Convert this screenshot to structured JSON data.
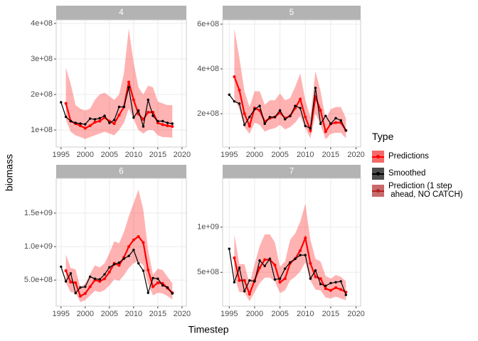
{
  "chart_data": [
    {
      "type": "line",
      "title": "4",
      "x": [
        1995,
        1996,
        1997,
        1998,
        1999,
        2000,
        2001,
        2002,
        2003,
        2004,
        2005,
        2006,
        2007,
        2008,
        2009,
        2010,
        2011,
        2012,
        2013,
        2014,
        2015,
        2016,
        2017,
        2018
      ],
      "smoothed": [
        178000000.0,
        137000000.0,
        125000000.0,
        120000000.0,
        118000000.0,
        116000000.0,
        132000000.0,
        130000000.0,
        133000000.0,
        140000000.0,
        120000000.0,
        128000000.0,
        165000000.0,
        165000000.0,
        220000000.0,
        135000000.0,
        155000000.0,
        110000000.0,
        185000000.0,
        140000000.0,
        125000000.0,
        125000000.0,
        120000000.0,
        118000000.0
      ],
      "predictions": [
        null,
        175000000.0,
        125000000.0,
        118000000.0,
        112000000.0,
        105000000.0,
        112000000.0,
        122000000.0,
        125000000.0,
        135000000.0,
        125000000.0,
        118000000.0,
        142000000.0,
        165000000.0,
        235000000.0,
        185000000.0,
        145000000.0,
        130000000.0,
        150000000.0,
        150000000.0,
        120000000.0,
        115000000.0,
        112000000.0,
        110000000.0
      ],
      "band": {
        "lower": [
          null,
          130000000.0,
          95000000.0,
          85000000.0,
          80000000.0,
          75000000.0,
          80000000.0,
          85000000.0,
          90000000.0,
          95000000.0,
          90000000.0,
          85000000.0,
          100000000.0,
          120000000.0,
          160000000.0,
          130000000.0,
          100000000.0,
          90000000.0,
          100000000.0,
          100000000.0,
          85000000.0,
          80000000.0,
          80000000.0,
          78000000.0
        ],
        "upper": [
          null,
          275000000.0,
          230000000.0,
          170000000.0,
          160000000.0,
          155000000.0,
          160000000.0,
          185000000.0,
          200000000.0,
          205000000.0,
          195000000.0,
          185000000.0,
          200000000.0,
          260000000.0,
          385000000.0,
          290000000.0,
          220000000.0,
          200000000.0,
          225000000.0,
          220000000.0,
          180000000.0,
          175000000.0,
          170000000.0,
          170000000.0
        ]
      },
      "xlim": [
        1994,
        2020.9
      ],
      "xticks": [
        1995,
        2000,
        2005,
        2010,
        2015,
        2020
      ],
      "ylim": [
        52000000.0,
        410000000.0
      ],
      "yticks": [
        {
          "value": 100000000.0,
          "label": "1e+08"
        },
        {
          "value": 200000000.0,
          "label": "2e+08"
        },
        {
          "value": 300000000.0,
          "label": "3e+08"
        },
        {
          "value": 400000000.0,
          "label": "4e+08"
        }
      ]
    },
    {
      "type": "line",
      "title": "5",
      "x": [
        1995,
        1996,
        1997,
        1998,
        1999,
        2000,
        2001,
        2002,
        2003,
        2004,
        2005,
        2006,
        2007,
        2008,
        2009,
        2010,
        2011,
        2012,
        2013,
        2014,
        2015,
        2016,
        2017,
        2018
      ],
      "smoothed": [
        285000000.0,
        255000000.0,
        245000000.0,
        150000000.0,
        185000000.0,
        220000000.0,
        235000000.0,
        155000000.0,
        185000000.0,
        185000000.0,
        215000000.0,
        175000000.0,
        190000000.0,
        235000000.0,
        225000000.0,
        145000000.0,
        135000000.0,
        315000000.0,
        155000000.0,
        190000000.0,
        155000000.0,
        180000000.0,
        170000000.0,
        125000000.0
      ],
      "predictions": [
        null,
        365000000.0,
        305000000.0,
        200000000.0,
        145000000.0,
        225000000.0,
        215000000.0,
        165000000.0,
        180000000.0,
        185000000.0,
        205000000.0,
        180000000.0,
        190000000.0,
        225000000.0,
        265000000.0,
        185000000.0,
        125000000.0,
        275000000.0,
        215000000.0,
        120000000.0,
        155000000.0,
        160000000.0,
        160000000.0,
        125000000.0
      ],
      "band": {
        "lower": [
          null,
          270000000.0,
          220000000.0,
          140000000.0,
          110000000.0,
          160000000.0,
          150000000.0,
          120000000.0,
          130000000.0,
          135000000.0,
          150000000.0,
          130000000.0,
          140000000.0,
          160000000.0,
          190000000.0,
          135000000.0,
          90000000.0,
          200000000.0,
          150000000.0,
          85000000.0,
          110000000.0,
          115000000.0,
          115000000.0,
          90000000.0
        ],
        "upper": [
          null,
          580000000.0,
          450000000.0,
          300000000.0,
          230000000.0,
          300000000.0,
          300000000.0,
          240000000.0,
          260000000.0,
          260000000.0,
          290000000.0,
          260000000.0,
          270000000.0,
          320000000.0,
          380000000.0,
          260000000.0,
          185000000.0,
          390000000.0,
          300000000.0,
          175000000.0,
          220000000.0,
          230000000.0,
          230000000.0,
          180000000.0
        ]
      },
      "xlim": [
        1993.7,
        2020.9
      ],
      "xticks": [
        1995,
        2000,
        2005,
        2010,
        2015,
        2020
      ],
      "ylim": [
        51000000.0,
        619000000.0
      ],
      "yticks": [
        {
          "value": 200000000.0,
          "label": "2e+08"
        },
        {
          "value": 400000000.0,
          "label": "4e+08"
        },
        {
          "value": 600000000.0,
          "label": "6e+08"
        }
      ]
    },
    {
      "type": "line",
      "title": "6",
      "x": [
        1995,
        1996,
        1997,
        1998,
        1999,
        2000,
        2001,
        2002,
        2003,
        2004,
        2005,
        2006,
        2007,
        2008,
        2009,
        2010,
        2011,
        2012,
        2013,
        2014,
        2015,
        2016,
        2017,
        2018
      ],
      "smoothed": [
        700000000.0,
        480000000.0,
        600000000.0,
        305000000.0,
        390000000.0,
        400000000.0,
        550000000.0,
        520000000.0,
        510000000.0,
        585000000.0,
        690000000.0,
        735000000.0,
        760000000.0,
        820000000.0,
        860000000.0,
        950000000.0,
        750000000.0,
        640000000.0,
        310000000.0,
        530000000.0,
        520000000.0,
        420000000.0,
        390000000.0,
        300000000.0
      ],
      "predictions": [
        null,
        640000000.0,
        470000000.0,
        460000000.0,
        260000000.0,
        300000000.0,
        400000000.0,
        500000000.0,
        480000000.0,
        520000000.0,
        620000000.0,
        750000000.0,
        720000000.0,
        840000000.0,
        1000000000.0,
        1100000000.0,
        1150000000.0,
        1060000000.0,
        650000000.0,
        400000000.0,
        460000000.0,
        450000000.0,
        380000000.0,
        310000000.0
      ],
      "band": {
        "lower": [
          null,
          460000000.0,
          320000000.0,
          310000000.0,
          170000000.0,
          200000000.0,
          270000000.0,
          340000000.0,
          320000000.0,
          350000000.0,
          420000000.0,
          510000000.0,
          490000000.0,
          570000000.0,
          680000000.0,
          750000000.0,
          780000000.0,
          720000000.0,
          440000000.0,
          270000000.0,
          310000000.0,
          300000000.0,
          260000000.0,
          210000000.0
        ],
        "upper": [
          null,
          880000000.0,
          680000000.0,
          660000000.0,
          390000000.0,
          450000000.0,
          590000000.0,
          720000000.0,
          690000000.0,
          750000000.0,
          900000000.0,
          1080000000.0,
          1050000000.0,
          1220000000.0,
          1450000000.0,
          1650000000.0,
          1850000000.0,
          1550000000.0,
          950000000.0,
          580000000.0,
          670000000.0,
          650000000.0,
          550000000.0,
          450000000.0
        ]
      },
      "xlim": [
        1994,
        2020.9
      ],
      "xticks": [
        1995,
        2000,
        2005,
        2010,
        2015,
        2020
      ],
      "ylim": [
        110000000.0,
        2020000000.0
      ],
      "yticks": [
        {
          "value": 500000000.0,
          "label": "5.0e+08"
        },
        {
          "value": 1000000000.0,
          "label": "1.0e+09"
        },
        {
          "value": 1500000000.0,
          "label": "1.5e+09"
        }
      ]
    },
    {
      "type": "line",
      "title": "7",
      "x": [
        1995,
        1996,
        1997,
        1998,
        1999,
        2000,
        2001,
        2002,
        2003,
        2004,
        2005,
        2006,
        2007,
        2008,
        2009,
        2010,
        2011,
        2012,
        2013,
        2014,
        2015,
        2016,
        2017,
        2018
      ],
      "smoothed": [
        760000000.0,
        390000000.0,
        550000000.0,
        290000000.0,
        410000000.0,
        400000000.0,
        630000000.0,
        570000000.0,
        650000000.0,
        420000000.0,
        430000000.0,
        540000000.0,
        610000000.0,
        650000000.0,
        690000000.0,
        690000000.0,
        430000000.0,
        520000000.0,
        370000000.0,
        350000000.0,
        380000000.0,
        390000000.0,
        400000000.0,
        250000000.0
      ],
      "predictions": [
        null,
        660000000.0,
        410000000.0,
        410000000.0,
        260000000.0,
        410000000.0,
        550000000.0,
        640000000.0,
        640000000.0,
        580000000.0,
        390000000.0,
        430000000.0,
        600000000.0,
        650000000.0,
        740000000.0,
        880000000.0,
        600000000.0,
        450000000.0,
        430000000.0,
        320000000.0,
        300000000.0,
        330000000.0,
        310000000.0,
        280000000.0
      ],
      "band": {
        "lower": [
          null,
          460000000.0,
          280000000.0,
          280000000.0,
          180000000.0,
          280000000.0,
          380000000.0,
          440000000.0,
          440000000.0,
          400000000.0,
          270000000.0,
          300000000.0,
          410000000.0,
          450000000.0,
          510000000.0,
          610000000.0,
          410000000.0,
          310000000.0,
          300000000.0,
          220000000.0,
          210000000.0,
          230000000.0,
          210000000.0,
          190000000.0
        ],
        "upper": [
          null,
          920000000.0,
          590000000.0,
          590000000.0,
          370000000.0,
          590000000.0,
          790000000.0,
          920000000.0,
          920000000.0,
          830000000.0,
          560000000.0,
          620000000.0,
          860000000.0,
          930000000.0,
          1060000000.0,
          1260000000.0,
          860000000.0,
          650000000.0,
          620000000.0,
          460000000.0,
          430000000.0,
          470000000.0,
          450000000.0,
          400000000.0
        ]
      },
      "xlim": [
        1993.7,
        2020.9
      ],
      "xticks": [
        1995,
        2000,
        2005,
        2010,
        2015,
        2020
      ],
      "ylim": [
        125000000.0,
        1540000000.0
      ],
      "yticks": [
        {
          "value": 500000000.0,
          "label": "5e+08"
        },
        {
          "value": 1000000000.0,
          "label": "1e+09"
        }
      ]
    }
  ],
  "x_label": "Timestep",
  "y_label": "biomass",
  "grid": true,
  "band_color": "#ff0000",
  "legend": {
    "title": "Type",
    "entries": [
      {
        "name": "Predictions",
        "color": "#ff0000",
        "fill": "#f46a6a"
      },
      {
        "name": "Smoothed",
        "color": "#000000",
        "fill": "#4d4d4d"
      },
      {
        "name": "Prediction (1 step\n ahead, NO CATCH)",
        "color": "#b22222",
        "fill": "#c86a6a"
      }
    ]
  }
}
